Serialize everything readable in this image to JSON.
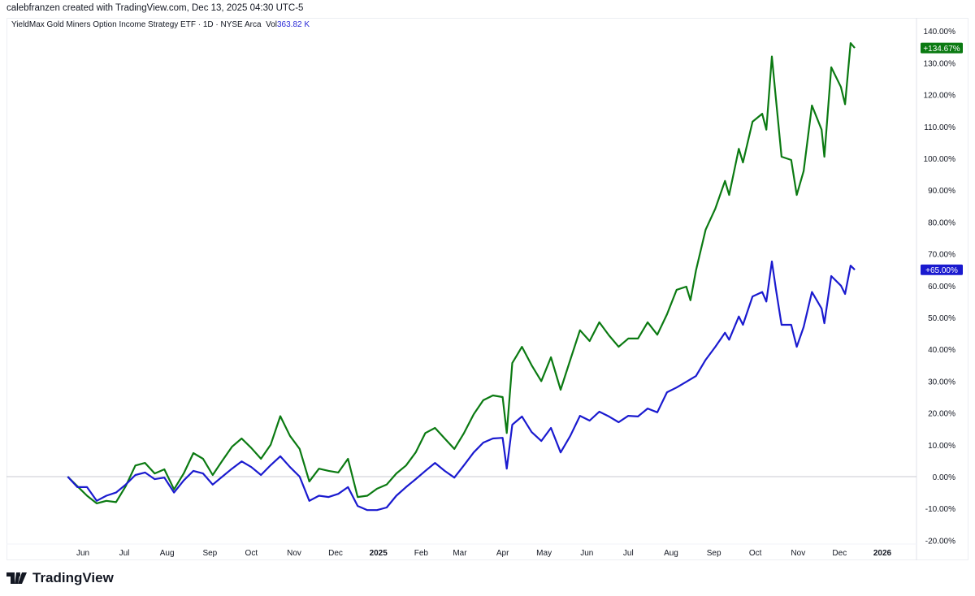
{
  "credit": "calebfranzen created with TradingView.com, Dec 13, 2025 04:30 UTC-5",
  "legend": {
    "symbol": "YieldMax Gold Miners Option Income Strategy ETF · 1D · NYSE Arca",
    "vol_label": "Vol",
    "vol_value": "363.82 K"
  },
  "logo": "TradingView",
  "chart_data": {
    "type": "line",
    "y_unit": "percent change",
    "ylim": [
      -20,
      140
    ],
    "y_ticks": [
      "140.00%",
      "130.00%",
      "120.00%",
      "110.00%",
      "100.00%",
      "90.00%",
      "80.00%",
      "70.00%",
      "60.00%",
      "50.00%",
      "40.00%",
      "30.00%",
      "20.00%",
      "10.00%",
      "0.00%",
      "-10.00%",
      "-20.00%"
    ],
    "x_ticks": [
      {
        "label": "Jun",
        "date": "2024-06-01"
      },
      {
        "label": "Jul",
        "date": "2024-07-01"
      },
      {
        "label": "Aug",
        "date": "2024-08-01"
      },
      {
        "label": "Sep",
        "date": "2024-09-01"
      },
      {
        "label": "Oct",
        "date": "2024-10-01"
      },
      {
        "label": "Nov",
        "date": "2024-11-01"
      },
      {
        "label": "Dec",
        "date": "2024-12-01"
      },
      {
        "label": "2025",
        "date": "2025-01-01",
        "bold": true
      },
      {
        "label": "Feb",
        "date": "2025-02-01"
      },
      {
        "label": "Mar",
        "date": "2025-03-01"
      },
      {
        "label": "Apr",
        "date": "2025-04-01"
      },
      {
        "label": "May",
        "date": "2025-05-01"
      },
      {
        "label": "Jun",
        "date": "2025-06-01"
      },
      {
        "label": "Jul",
        "date": "2025-07-01"
      },
      {
        "label": "Aug",
        "date": "2025-08-01"
      },
      {
        "label": "Sep",
        "date": "2025-09-01"
      },
      {
        "label": "Oct",
        "date": "2025-10-01"
      },
      {
        "label": "Nov",
        "date": "2025-11-01"
      },
      {
        "label": "Dec",
        "date": "2025-12-01"
      },
      {
        "label": "2026",
        "date": "2026-01-01",
        "bold": true
      }
    ],
    "zero_line": true,
    "grid": false,
    "series": [
      {
        "color": "#0b7a12",
        "last_label": "+134.67%",
        "points": [
          [
            "2024-05-21",
            0
          ],
          [
            "2024-05-28",
            -3
          ],
          [
            "2024-06-04",
            -6
          ],
          [
            "2024-06-11",
            -8.4
          ],
          [
            "2024-06-18",
            -7.6
          ],
          [
            "2024-06-25",
            -8
          ],
          [
            "2024-07-02",
            -3
          ],
          [
            "2024-07-09",
            3.5
          ],
          [
            "2024-07-16",
            4.3
          ],
          [
            "2024-07-23",
            1
          ],
          [
            "2024-07-30",
            2.3
          ],
          [
            "2024-08-06",
            -4
          ],
          [
            "2024-08-13",
            1
          ],
          [
            "2024-08-20",
            7.4
          ],
          [
            "2024-08-27",
            5.6
          ],
          [
            "2024-09-03",
            0.5
          ],
          [
            "2024-09-10",
            5
          ],
          [
            "2024-09-17",
            9.4
          ],
          [
            "2024-09-24",
            12
          ],
          [
            "2024-10-01",
            9
          ],
          [
            "2024-10-08",
            5.6
          ],
          [
            "2024-10-15",
            10
          ],
          [
            "2024-10-22",
            19
          ],
          [
            "2024-10-29",
            12.8
          ],
          [
            "2024-11-05",
            8.7
          ],
          [
            "2024-11-12",
            -1.5
          ],
          [
            "2024-11-19",
            2.5
          ],
          [
            "2024-11-26",
            1.8
          ],
          [
            "2024-12-03",
            1.3
          ],
          [
            "2024-12-10",
            5.6
          ],
          [
            "2024-12-17",
            -6.4
          ],
          [
            "2024-12-24",
            -6
          ],
          [
            "2024-12-31",
            -3.8
          ],
          [
            "2025-01-07",
            -2.5
          ],
          [
            "2025-01-14",
            1
          ],
          [
            "2025-01-21",
            3.5
          ],
          [
            "2025-01-28",
            7.6
          ],
          [
            "2025-02-04",
            13.7
          ],
          [
            "2025-02-11",
            15.3
          ],
          [
            "2025-02-18",
            12
          ],
          [
            "2025-02-25",
            8.7
          ],
          [
            "2025-03-04",
            13.7
          ],
          [
            "2025-03-11",
            19.6
          ],
          [
            "2025-03-18",
            24
          ],
          [
            "2025-03-25",
            25.5
          ],
          [
            "2025-04-01",
            25
          ],
          [
            "2025-04-04",
            13.7
          ],
          [
            "2025-04-08",
            35.7
          ],
          [
            "2025-04-15",
            40.8
          ],
          [
            "2025-04-22",
            35
          ],
          [
            "2025-04-29",
            30
          ],
          [
            "2025-05-06",
            37.5
          ],
          [
            "2025-05-13",
            27.3
          ],
          [
            "2025-05-20",
            36.7
          ],
          [
            "2025-05-27",
            46
          ],
          [
            "2025-06-03",
            42.6
          ],
          [
            "2025-06-10",
            48.5
          ],
          [
            "2025-06-17",
            44.4
          ],
          [
            "2025-06-24",
            40.8
          ],
          [
            "2025-07-01",
            43.4
          ],
          [
            "2025-07-08",
            43.4
          ],
          [
            "2025-07-15",
            48.5
          ],
          [
            "2025-07-22",
            44.6
          ],
          [
            "2025-07-29",
            51
          ],
          [
            "2025-08-05",
            58.7
          ],
          [
            "2025-08-12",
            59.7
          ],
          [
            "2025-08-15",
            55.4
          ],
          [
            "2025-08-19",
            64.8
          ],
          [
            "2025-08-26",
            77.6
          ],
          [
            "2025-09-02",
            84.2
          ],
          [
            "2025-09-09",
            92.9
          ],
          [
            "2025-09-12",
            88.5
          ],
          [
            "2025-09-19",
            103
          ],
          [
            "2025-09-22",
            98.7
          ],
          [
            "2025-09-29",
            111.5
          ],
          [
            "2025-10-06",
            114
          ],
          [
            "2025-10-09",
            109
          ],
          [
            "2025-10-13",
            132
          ],
          [
            "2025-10-16",
            118.4
          ],
          [
            "2025-10-20",
            100.5
          ],
          [
            "2025-10-27",
            99.5
          ],
          [
            "2025-10-31",
            88.5
          ],
          [
            "2025-11-05",
            96
          ],
          [
            "2025-11-11",
            116.6
          ],
          [
            "2025-11-18",
            109
          ],
          [
            "2025-11-20",
            100.5
          ],
          [
            "2025-11-25",
            128.6
          ],
          [
            "2025-12-02",
            122.4
          ],
          [
            "2025-12-05",
            117
          ],
          [
            "2025-12-09",
            136.2
          ],
          [
            "2025-12-12",
            134.67
          ]
        ]
      },
      {
        "color": "#1a1acf",
        "last_label": "+65.00%",
        "points": [
          [
            "2024-05-21",
            0
          ],
          [
            "2024-05-28",
            -3.3
          ],
          [
            "2024-06-04",
            -3.3
          ],
          [
            "2024-06-11",
            -7.6
          ],
          [
            "2024-06-18",
            -6
          ],
          [
            "2024-06-25",
            -5
          ],
          [
            "2024-07-02",
            -2.5
          ],
          [
            "2024-07-09",
            0.5
          ],
          [
            "2024-07-16",
            1.3
          ],
          [
            "2024-07-23",
            -0.8
          ],
          [
            "2024-07-30",
            -0.3
          ],
          [
            "2024-08-06",
            -5
          ],
          [
            "2024-08-13",
            -1.2
          ],
          [
            "2024-08-20",
            1.8
          ],
          [
            "2024-08-27",
            1
          ],
          [
            "2024-09-03",
            -2.5
          ],
          [
            "2024-09-10",
            0
          ],
          [
            "2024-09-17",
            2.5
          ],
          [
            "2024-09-24",
            4.8
          ],
          [
            "2024-10-01",
            3
          ],
          [
            "2024-10-08",
            0.5
          ],
          [
            "2024-10-15",
            3.6
          ],
          [
            "2024-10-22",
            6.4
          ],
          [
            "2024-10-29",
            3
          ],
          [
            "2024-11-05",
            0
          ],
          [
            "2024-11-12",
            -7.6
          ],
          [
            "2024-11-19",
            -6
          ],
          [
            "2024-11-26",
            -6.4
          ],
          [
            "2024-12-03",
            -5.4
          ],
          [
            "2024-12-10",
            -3.3
          ],
          [
            "2024-12-17",
            -9.2
          ],
          [
            "2024-12-24",
            -10.5
          ],
          [
            "2024-12-31",
            -10.5
          ],
          [
            "2025-01-07",
            -9.7
          ],
          [
            "2025-01-14",
            -6
          ],
          [
            "2025-01-21",
            -3.3
          ],
          [
            "2025-01-28",
            -0.8
          ],
          [
            "2025-02-04",
            1.8
          ],
          [
            "2025-02-11",
            4.3
          ],
          [
            "2025-02-18",
            1.8
          ],
          [
            "2025-02-25",
            -0.3
          ],
          [
            "2025-03-04",
            3.6
          ],
          [
            "2025-03-11",
            7.6
          ],
          [
            "2025-03-18",
            10.7
          ],
          [
            "2025-03-25",
            12
          ],
          [
            "2025-04-01",
            12.2
          ],
          [
            "2025-04-04",
            2.5
          ],
          [
            "2025-04-08",
            16.3
          ],
          [
            "2025-04-15",
            18.9
          ],
          [
            "2025-04-22",
            14
          ],
          [
            "2025-04-29",
            11.2
          ],
          [
            "2025-05-06",
            15.3
          ],
          [
            "2025-05-13",
            7.6
          ],
          [
            "2025-05-20",
            12.8
          ],
          [
            "2025-05-27",
            19.1
          ],
          [
            "2025-06-03",
            17.6
          ],
          [
            "2025-06-10",
            20.4
          ],
          [
            "2025-06-17",
            18.9
          ],
          [
            "2025-06-24",
            17.1
          ],
          [
            "2025-07-01",
            19.1
          ],
          [
            "2025-07-08",
            18.9
          ],
          [
            "2025-07-15",
            21.4
          ],
          [
            "2025-07-22",
            20.2
          ],
          [
            "2025-07-29",
            26.5
          ],
          [
            "2025-08-05",
            28
          ],
          [
            "2025-08-12",
            29.8
          ],
          [
            "2025-08-19",
            31.6
          ],
          [
            "2025-08-26",
            36.7
          ],
          [
            "2025-09-02",
            40.8
          ],
          [
            "2025-09-09",
            45.2
          ],
          [
            "2025-09-12",
            43
          ],
          [
            "2025-09-19",
            50.3
          ],
          [
            "2025-09-22",
            47.7
          ],
          [
            "2025-09-29",
            56.6
          ],
          [
            "2025-10-06",
            58
          ],
          [
            "2025-10-09",
            55
          ],
          [
            "2025-10-13",
            67.6
          ],
          [
            "2025-10-16",
            58.7
          ],
          [
            "2025-10-20",
            47.7
          ],
          [
            "2025-10-27",
            47.7
          ],
          [
            "2025-10-31",
            40.8
          ],
          [
            "2025-11-05",
            47
          ],
          [
            "2025-11-11",
            58
          ],
          [
            "2025-11-18",
            52.8
          ],
          [
            "2025-11-20",
            48.2
          ],
          [
            "2025-11-25",
            63
          ],
          [
            "2025-12-02",
            60
          ],
          [
            "2025-12-05",
            57.4
          ],
          [
            "2025-12-09",
            66.3
          ],
          [
            "2025-12-12",
            65
          ]
        ]
      }
    ]
  }
}
